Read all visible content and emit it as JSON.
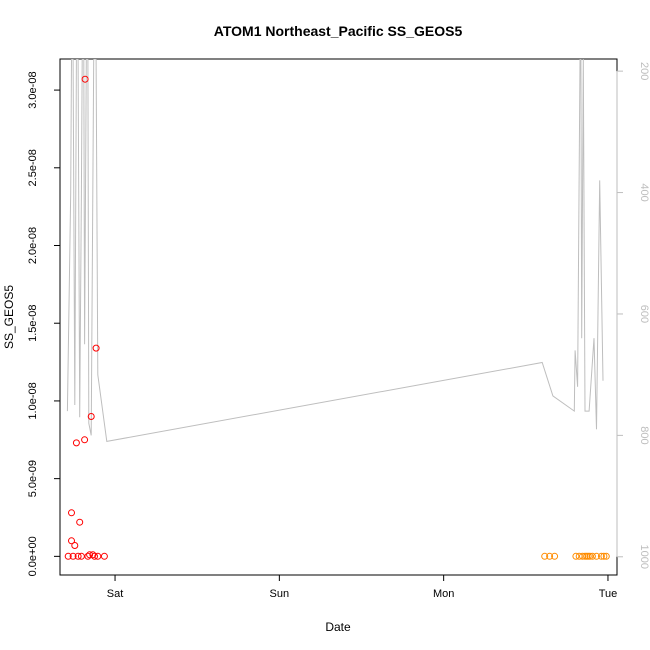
{
  "chart_data": {
    "type": "scatter",
    "title": "ATOM1 Northeast_Pacific SS_GEOS5",
    "xlabel": "Date",
    "ylabel": "SS_GEOS5",
    "x_unit": "days since Fri 00:00",
    "xlim": [
      0.665,
      4.055
    ],
    "x_ticks": [
      {
        "value": 1,
        "label": "Sat"
      },
      {
        "value": 2,
        "label": "Sun"
      },
      {
        "value": 3,
        "label": "Mon"
      },
      {
        "value": 4,
        "label": "Tue"
      }
    ],
    "ylim": [
      -1.2e-09,
      3.2e-08
    ],
    "y_ticks": [
      {
        "value": 0,
        "label": "0.0e+00"
      },
      {
        "value": 5e-09,
        "label": "5.0e-09"
      },
      {
        "value": 1e-08,
        "label": "1.0e-08"
      },
      {
        "value": 1.5e-08,
        "label": "1.5e-08"
      },
      {
        "value": 2e-08,
        "label": "2.0e-08"
      },
      {
        "value": 2.5e-08,
        "label": "2.5e-08"
      },
      {
        "value": 3e-08,
        "label": "3.0e-08"
      }
    ],
    "y2_axis": {
      "label": "",
      "reversed": true,
      "ylim": [
        1030,
        180
      ],
      "ticks": [
        {
          "value": 200,
          "label": "200"
        },
        {
          "value": 400,
          "label": "400"
        },
        {
          "value": 600,
          "label": "600"
        },
        {
          "value": 800,
          "label": "800"
        },
        {
          "value": 1000,
          "label": "1000"
        }
      ]
    },
    "grid": false,
    "legend": "none",
    "series": [
      {
        "kind": "points",
        "color": "#ff0000",
        "points": [
          [
            0.715,
            0.0
          ],
          [
            0.735,
            2.8e-09
          ],
          [
            0.735,
            1e-09
          ],
          [
            0.745,
            0.0
          ],
          [
            0.755,
            7e-10
          ],
          [
            0.765,
            7.3e-09
          ],
          [
            0.775,
            0.0
          ],
          [
            0.785,
            2.2e-09
          ],
          [
            0.795,
            0.0
          ],
          [
            0.815,
            7.5e-09
          ],
          [
            0.818,
            3.07e-08
          ],
          [
            0.835,
            0.0
          ],
          [
            0.845,
            1e-10
          ],
          [
            0.855,
            9e-09
          ],
          [
            0.865,
            1e-10
          ],
          [
            0.875,
            0.0
          ],
          [
            0.885,
            1.34e-08
          ],
          [
            0.895,
            0.0
          ],
          [
            0.935,
            0.0
          ]
        ]
      },
      {
        "kind": "points",
        "color": "#ff8c00",
        "points": [
          [
            3.615,
            0.0
          ],
          [
            3.645,
            0.0
          ],
          [
            3.675,
            0.0
          ],
          [
            3.805,
            0.0
          ],
          [
            3.825,
            0.0
          ],
          [
            3.845,
            0.0
          ],
          [
            3.86,
            0.0
          ],
          [
            3.87,
            0.0
          ],
          [
            3.88,
            0.0
          ],
          [
            3.89,
            0.0
          ],
          [
            3.905,
            0.0
          ],
          [
            3.93,
            0.0
          ],
          [
            3.96,
            0.0
          ],
          [
            3.975,
            0.0
          ],
          [
            3.99,
            0.0
          ]
        ]
      },
      {
        "kind": "line",
        "axis": "y2",
        "color": "#bebebe",
        "points": [
          [
            0.71,
            760
          ],
          [
            0.73,
            400
          ],
          [
            0.735,
            180
          ],
          [
            0.745,
            180
          ],
          [
            0.755,
            750
          ],
          [
            0.765,
            180
          ],
          [
            0.775,
            180
          ],
          [
            0.785,
            770
          ],
          [
            0.795,
            400
          ],
          [
            0.8,
            180
          ],
          [
            0.81,
            180
          ],
          [
            0.815,
            650
          ],
          [
            0.825,
            180
          ],
          [
            0.835,
            180
          ],
          [
            0.84,
            780
          ],
          [
            0.855,
            800
          ],
          [
            0.87,
            180
          ],
          [
            0.885,
            180
          ],
          [
            0.895,
            700
          ],
          [
            0.95,
            810
          ],
          [
            3.6,
            680
          ],
          [
            3.665,
            735
          ],
          [
            3.795,
            760
          ],
          [
            3.8,
            660
          ],
          [
            3.815,
            720
          ],
          [
            3.83,
            180
          ],
          [
            3.835,
            180
          ],
          [
            3.84,
            640
          ],
          [
            3.85,
            180
          ],
          [
            3.86,
            760
          ],
          [
            3.885,
            760
          ],
          [
            3.915,
            640
          ],
          [
            3.93,
            790
          ],
          [
            3.95,
            380
          ],
          [
            3.97,
            710
          ]
        ]
      }
    ]
  }
}
